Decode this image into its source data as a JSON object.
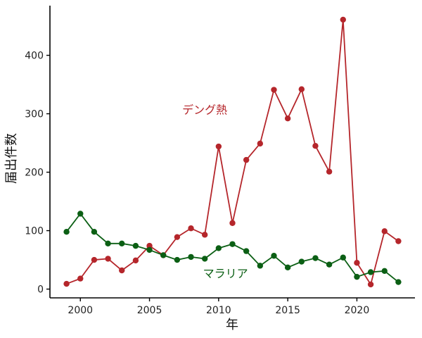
{
  "chart_data": {
    "type": "line",
    "xlabel": "年",
    "ylabel": "届出件数",
    "xlim": [
      1997.8,
      2024.2
    ],
    "ylim": [
      -15,
      485
    ],
    "xticks": [
      2000,
      2005,
      2010,
      2015,
      2020
    ],
    "yticks": [
      0,
      100,
      200,
      300,
      400
    ],
    "grid": false,
    "legend": "inline labels",
    "x": [
      1999,
      2000,
      2001,
      2002,
      2003,
      2004,
      2005,
      2006,
      2007,
      2008,
      2009,
      2010,
      2011,
      2012,
      2013,
      2014,
      2015,
      2016,
      2017,
      2018,
      2019,
      2020,
      2021,
      2022,
      2023
    ],
    "series": [
      {
        "name": "デング熱",
        "color": "#b5262b",
        "values": [
          9,
          18,
          50,
          52,
          32,
          49,
          74,
          58,
          89,
          104,
          93,
          244,
          113,
          221,
          249,
          341,
          292,
          342,
          245,
          201,
          461,
          45,
          8,
          99,
          82
        ],
        "label_position": [
          2009,
          300
        ]
      },
      {
        "name": "マラリア",
        "color": "#0b5f14",
        "values": [
          98,
          129,
          98,
          78,
          78,
          74,
          67,
          58,
          50,
          55,
          52,
          70,
          77,
          65,
          40,
          57,
          37,
          47,
          53,
          42,
          54,
          21,
          29,
          31,
          12
        ],
        "label_position": [
          2010.5,
          20
        ]
      }
    ]
  }
}
